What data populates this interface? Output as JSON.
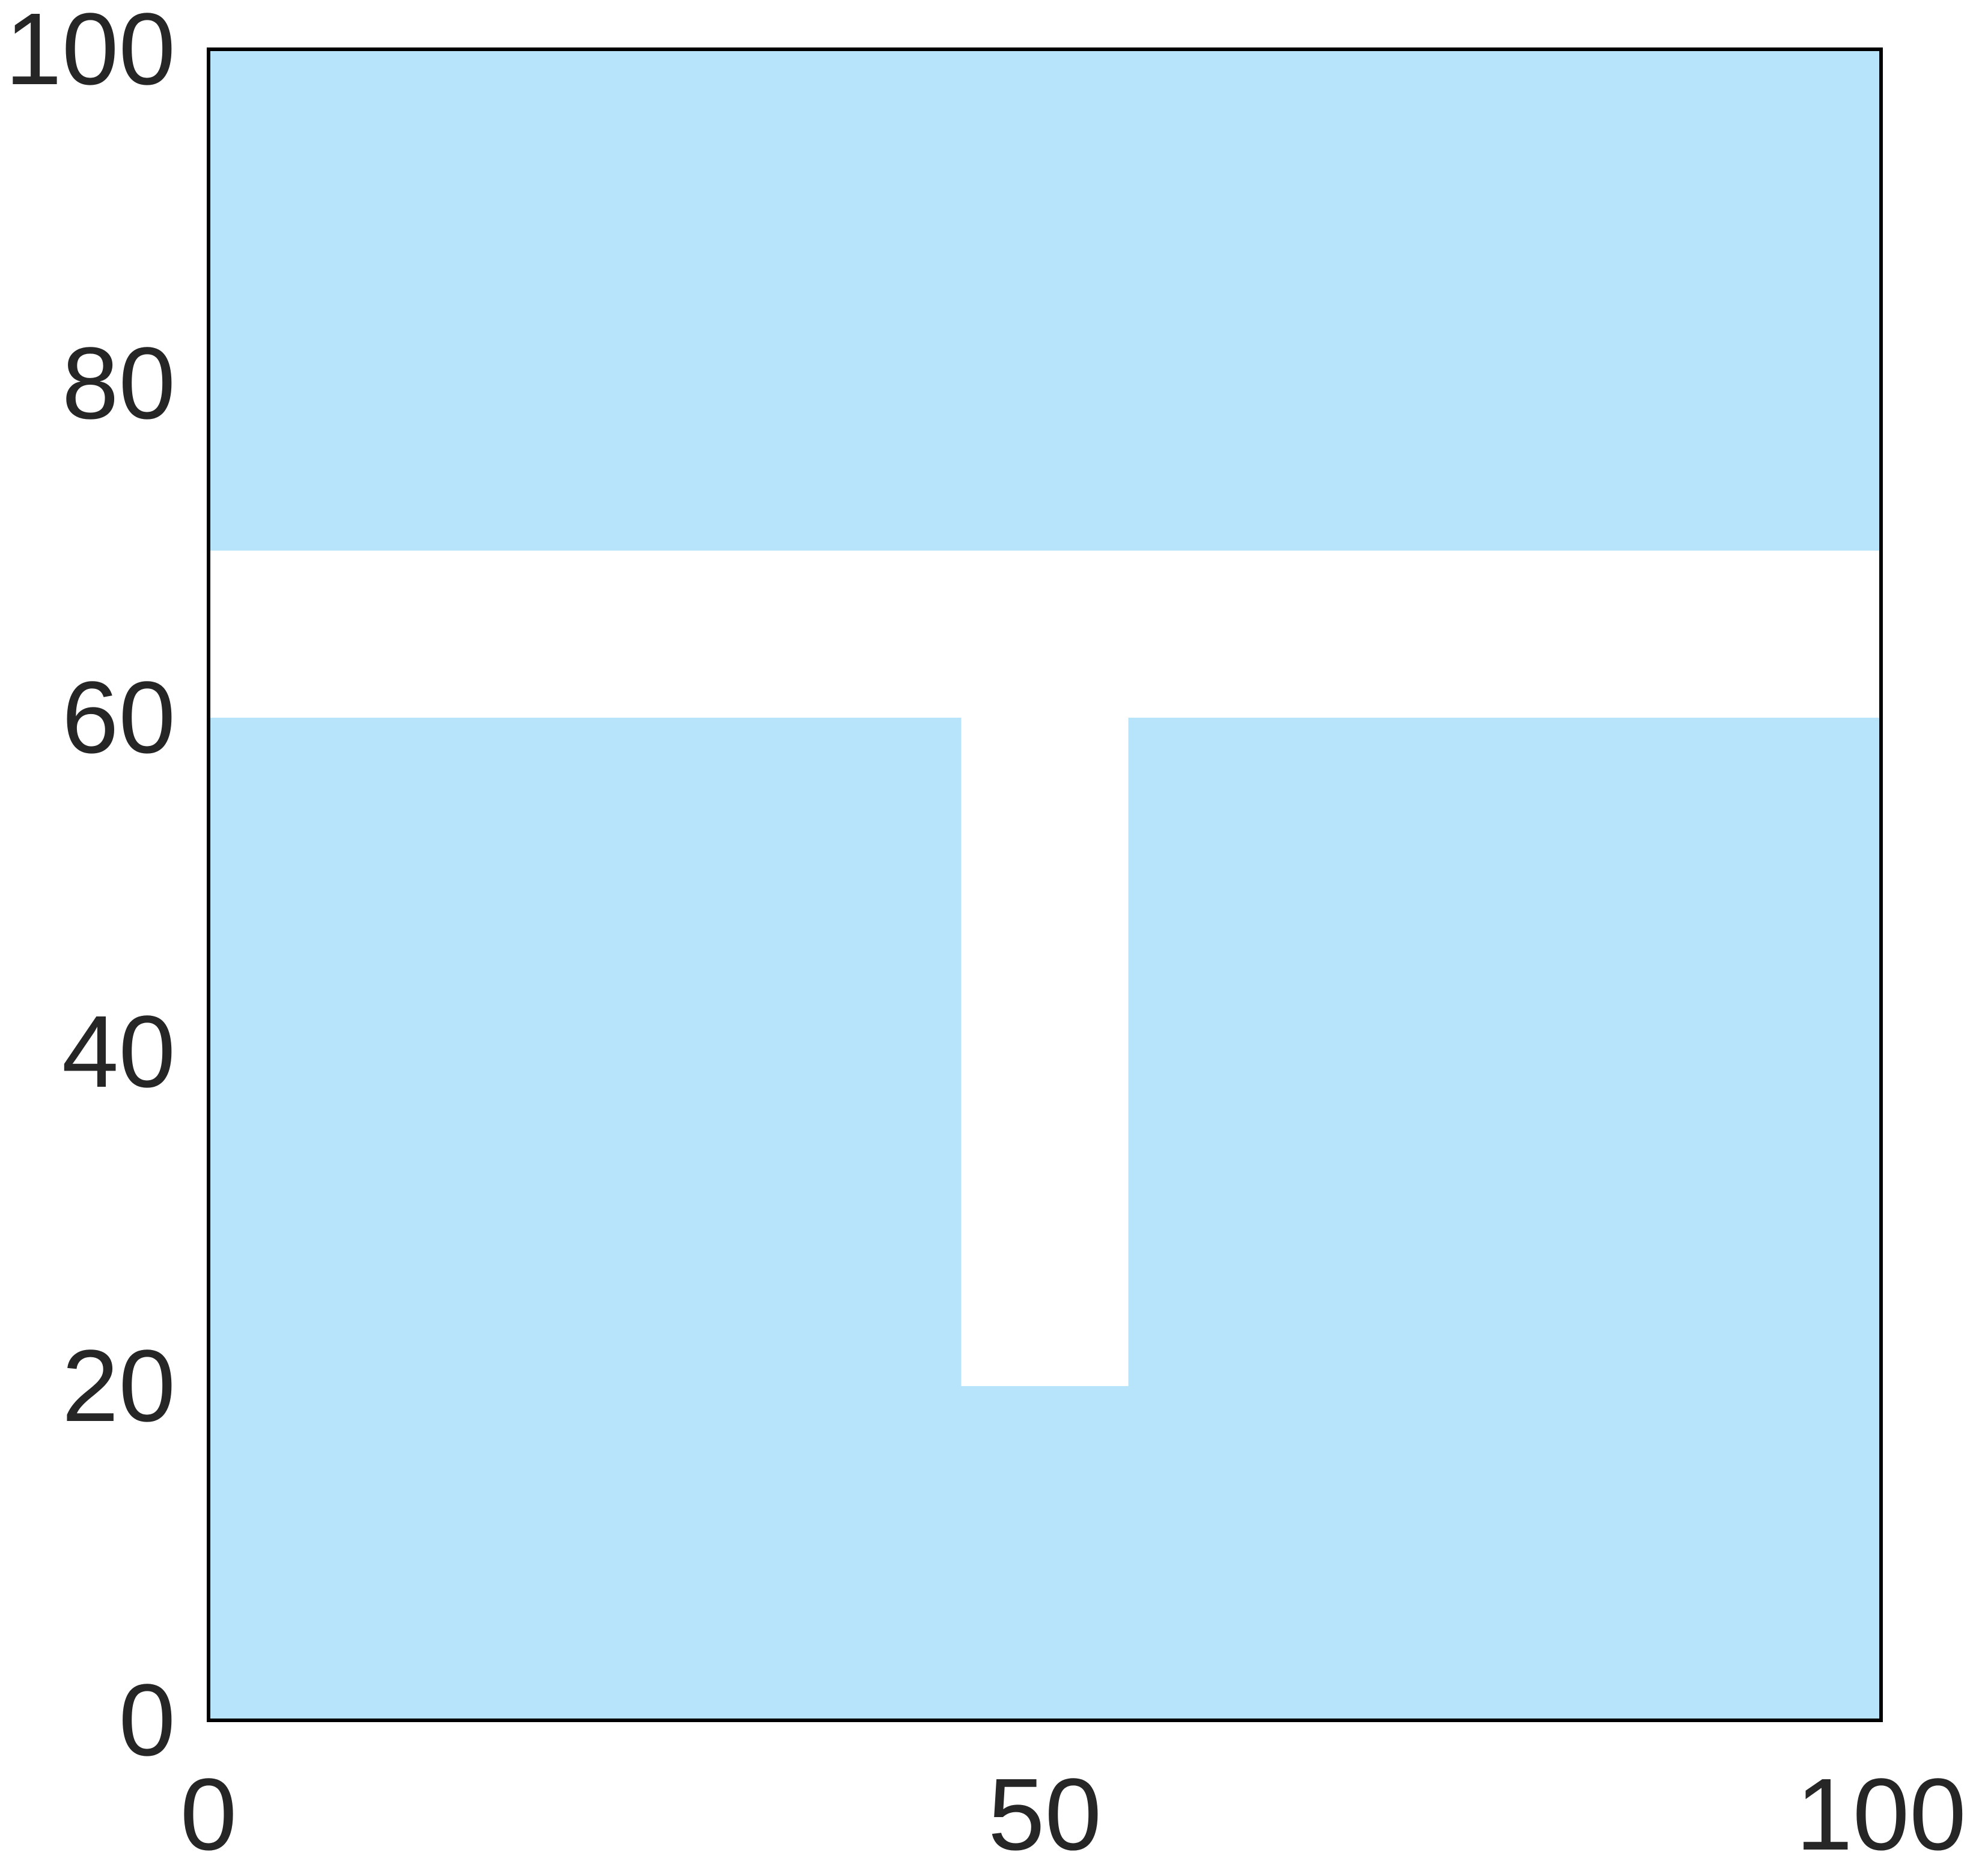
{
  "chart_data": {
    "type": "heatmap",
    "title": "",
    "xlabel": "",
    "ylabel": "",
    "xlim": [
      0,
      100
    ],
    "ylim": [
      0,
      100
    ],
    "grid": false,
    "fill_color": "#b8e4fb",
    "empty_color": "#ffffff",
    "axis_color": "#000000",
    "label_color": "#262626",
    "filled_regions": [
      {
        "name": "top-band",
        "x0": 0,
        "x1": 100,
        "y0": 70,
        "y1": 100
      },
      {
        "name": "bottom-left-block",
        "x0": 0,
        "x1": 45,
        "y0": 0,
        "y1": 60
      },
      {
        "name": "bottom-right-block",
        "x0": 55,
        "x1": 100,
        "y0": 0,
        "y1": 60
      },
      {
        "name": "bottom-center-block",
        "x0": 45,
        "x1": 55,
        "y0": 0,
        "y1": 20
      }
    ],
    "x_ticks": [
      {
        "value": 0,
        "label": "0"
      },
      {
        "value": 50,
        "label": "50"
      },
      {
        "value": 100,
        "label": "100"
      }
    ],
    "y_ticks": [
      {
        "value": 0,
        "label": "0"
      },
      {
        "value": 20,
        "label": "20"
      },
      {
        "value": 40,
        "label": "40"
      },
      {
        "value": 60,
        "label": "60"
      },
      {
        "value": 80,
        "label": "80"
      },
      {
        "value": 100,
        "label": "100"
      }
    ]
  }
}
